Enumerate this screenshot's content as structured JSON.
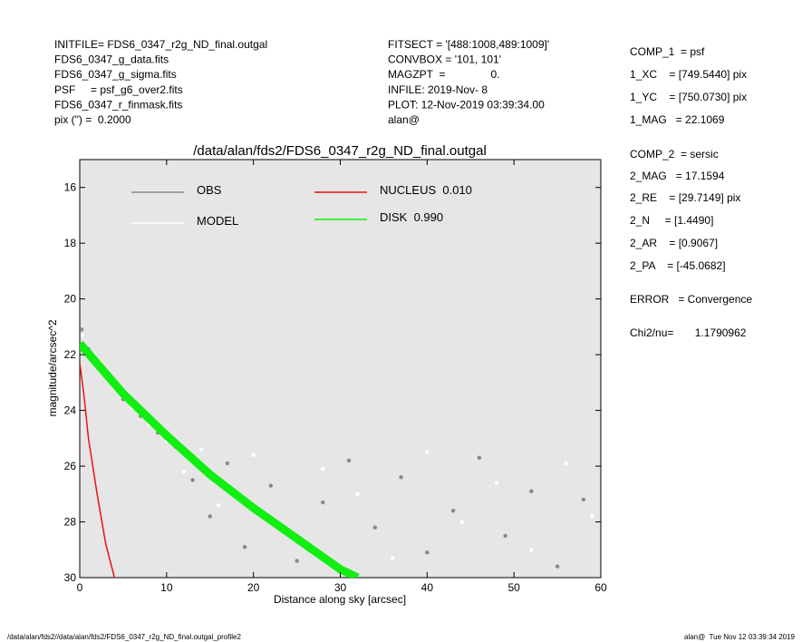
{
  "header": {
    "left": [
      "INITFILE= FDS6_0347_r2g_ND_final.outgal",
      "FDS6_0347_g_data.fits",
      "FDS6_0347_g_sigma.fits",
      "PSF     = psf_g6_over2.fits",
      "FDS6_0347_r_finmask.fits",
      "pix (\") =  0.2000"
    ],
    "middle": [
      "FITSECT = '[488:1008,489:1009]'",
      "CONVBOX = '101, 101'",
      "MAGZPT  =               0.",
      "INFILE: 2019-Nov- 8",
      "PLOT: 12-Nov-2019 03:39:34.00",
      "alan@"
    ],
    "right": [
      "COMP_1  = psf",
      "1_XC    = [749.5440] pix",
      "1_YC    = [750.0730] pix",
      "1_MAG   = 22.1069",
      "COMP_2  = sersic",
      "2_MAG   = 17.1594",
      "2_RE    = [29.7149] pix",
      "2_N     = [1.4490]",
      "2_AR    = [0.9067]",
      "2_PA    = [-45.0682]",
      "ERROR   = Convergence",
      "Chi2/nu=       1.1790962"
    ]
  },
  "footer": {
    "left": "/data/alan/fds2//data/alan/fds2/FDS6_0347_r2g_ND_final.outgal_profile2",
    "right": "alan@  Tue Nov 12 03:39:34 2019"
  },
  "chart_data": {
    "type": "scatter",
    "title": "/data/alan/fds2/FDS6_0347_r2g_ND_final.outgal",
    "x_label": "Distance along sky [arcsec]",
    "y_label": "magnitude/arcsec^2",
    "xlim": [
      0,
      60
    ],
    "xticks": [
      0,
      10,
      20,
      30,
      40,
      50,
      60
    ],
    "ylim": [
      30,
      15
    ],
    "yticks": [
      16,
      18,
      20,
      22,
      24,
      26,
      28,
      30
    ],
    "series": [
      {
        "name": "OBS",
        "color": "#888888",
        "style": "points",
        "x": [
          0.2,
          1,
          2,
          3,
          5,
          7,
          9,
          11,
          13,
          15,
          17,
          19,
          22,
          25,
          28,
          31,
          34,
          37,
          40,
          43,
          46,
          49,
          52,
          55,
          58
        ],
        "values": [
          21.1,
          21.8,
          22.3,
          22.8,
          23.6,
          24.2,
          24.8,
          25.3,
          26.5,
          27.8,
          25.9,
          28.9,
          26.7,
          29.4,
          27.3,
          25.8,
          28.2,
          26.4,
          29.1,
          27.6,
          25.7,
          28.5,
          26.9,
          29.6,
          27.2
        ]
      },
      {
        "name": "MODEL",
        "color": "#ffffff",
        "style": "points",
        "x": [
          0.3,
          2,
          4,
          6,
          8,
          10,
          12,
          14,
          16,
          20,
          24,
          28,
          32,
          36,
          40,
          44,
          48,
          52,
          56,
          59
        ],
        "values": [
          21.3,
          22.4,
          23.2,
          23.9,
          24.5,
          25.1,
          26.2,
          25.4,
          27.4,
          25.6,
          28.3,
          26.1,
          27.0,
          29.3,
          25.5,
          28.0,
          26.6,
          29.0,
          25.9,
          27.8
        ]
      },
      {
        "name": "NUCLEUS  0.010",
        "color": "#ee1111",
        "style": "line",
        "x": [
          0,
          0.5,
          1,
          2,
          3,
          4
        ],
        "values": [
          22.3,
          23.5,
          25,
          27,
          28.8,
          30
        ]
      },
      {
        "name": "DISK  0.990",
        "color": "#11ee11",
        "style": "band",
        "x": [
          0,
          5,
          10,
          15,
          20,
          25,
          30,
          32
        ],
        "values": [
          21.6,
          23.4,
          24.9,
          26.3,
          27.5,
          28.6,
          29.7,
          30
        ]
      }
    ]
  }
}
